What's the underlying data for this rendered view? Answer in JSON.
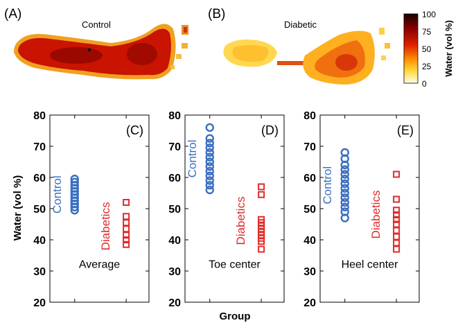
{
  "maps": {
    "colorbar": {
      "ticks": [
        "100",
        "75",
        "50",
        "25",
        "0"
      ],
      "label": "Water (vol %)",
      "range": [
        0,
        100
      ]
    },
    "panels": [
      {
        "panel_label": "(A)",
        "title": "Control"
      },
      {
        "panel_label": "(B)",
        "title": "Diabetic"
      }
    ]
  },
  "colors": {
    "control": "#3b6fc0",
    "diabetics": "#e02a2a",
    "axis": "#000000"
  },
  "shared": {
    "ylabel": "Water (vol %)",
    "xlabel": "Group"
  },
  "chart_data": [
    {
      "type": "scatter",
      "panel_label": "(C)",
      "annotation": "Average",
      "ylim": [
        20,
        80
      ],
      "yticks": [
        20,
        30,
        40,
        50,
        60,
        70,
        80
      ],
      "grid": false,
      "series": [
        {
          "name": "Control",
          "marker": "circle",
          "x": 1,
          "values": [
            49.5,
            50.5,
            51.5,
            52.5,
            53.5,
            54.5,
            55.5,
            56.5,
            57.5,
            58.5,
            59.5
          ]
        },
        {
          "name": "Diabetics",
          "marker": "square",
          "x": 2,
          "values": [
            38.5,
            40,
            41.5,
            43.5,
            45.5,
            47.5,
            52
          ]
        }
      ]
    },
    {
      "type": "scatter",
      "panel_label": "(D)",
      "annotation": "Toe center",
      "ylim": [
        20,
        80
      ],
      "yticks": [
        20,
        30,
        40,
        50,
        60,
        70,
        80
      ],
      "grid": false,
      "series": [
        {
          "name": "Control",
          "marker": "circle",
          "x": 1,
          "values": [
            56,
            57.5,
            59,
            60.5,
            62,
            63.5,
            65,
            66.5,
            68,
            69.5,
            71,
            72.5,
            76
          ]
        },
        {
          "name": "Diabetics",
          "marker": "square",
          "x": 2,
          "values": [
            37,
            39.5,
            40.5,
            41.5,
            42.5,
            43.5,
            44.5,
            45.5,
            46.5,
            54.5,
            57
          ]
        }
      ]
    },
    {
      "type": "scatter",
      "panel_label": "(E)",
      "annotation": "Heel center",
      "ylim": [
        20,
        80
      ],
      "yticks": [
        20,
        30,
        40,
        50,
        60,
        70,
        80
      ],
      "grid": false,
      "series": [
        {
          "name": "Control",
          "marker": "circle",
          "x": 1,
          "values": [
            47,
            49,
            50.5,
            52,
            53.5,
            55,
            56.5,
            58,
            59.5,
            61,
            62.5,
            64,
            66,
            68
          ]
        },
        {
          "name": "Diabetics",
          "marker": "square",
          "x": 2,
          "values": [
            37,
            39,
            41,
            43,
            45,
            46.5,
            48,
            49.5,
            53,
            61
          ]
        }
      ]
    }
  ]
}
